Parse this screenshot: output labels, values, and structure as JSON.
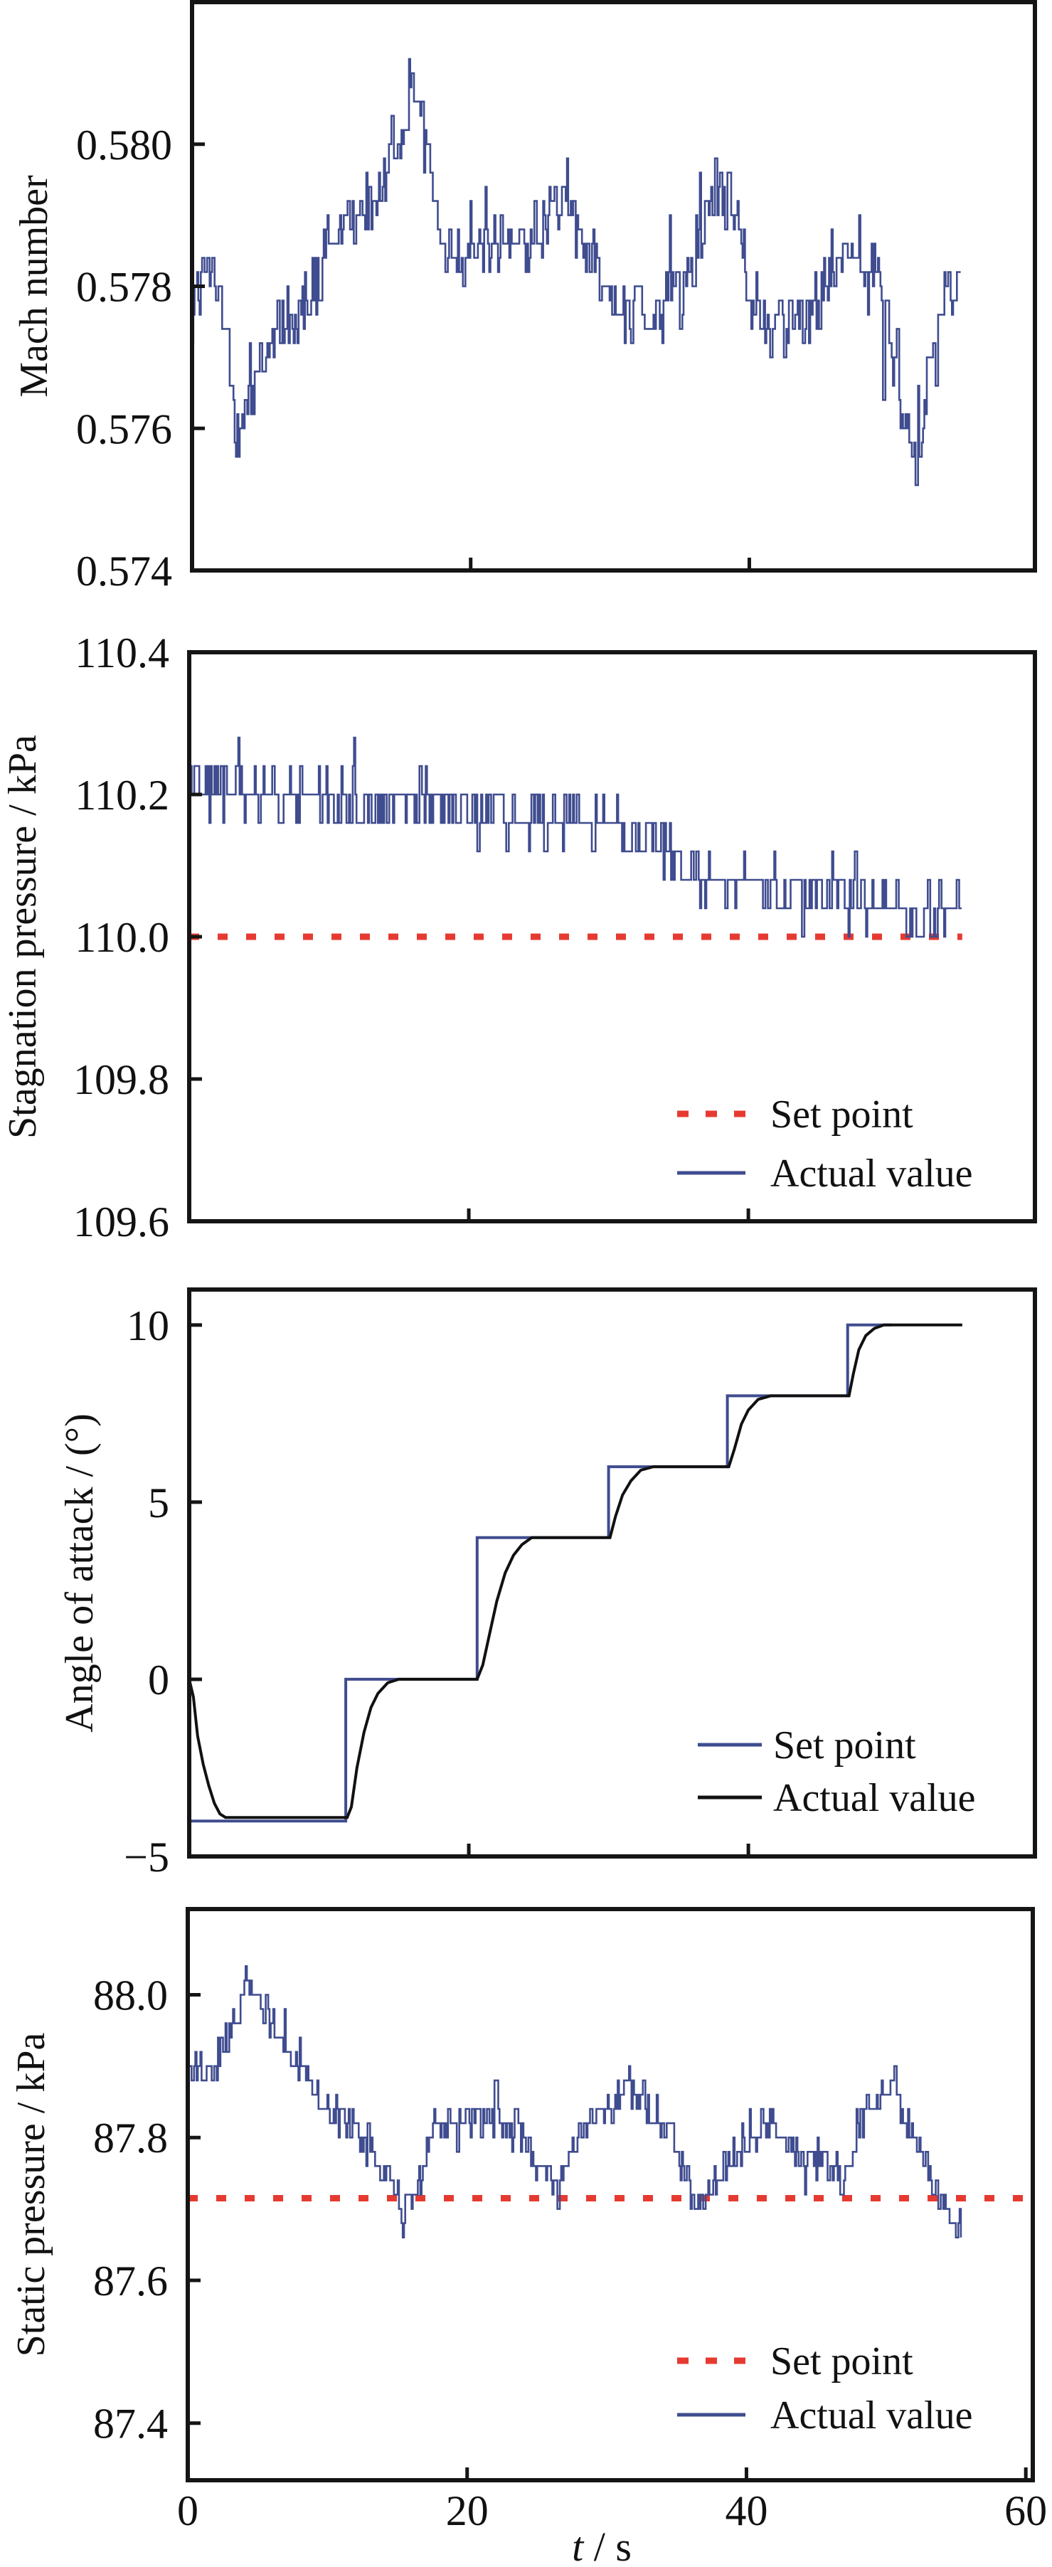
{
  "colors": {
    "actual_blue": "#3f4c8f",
    "setpoint_red": "#e63a31",
    "actual_black": "#111111",
    "axis": "#151515"
  },
  "chart_data": [
    {
      "type": "line",
      "id": "mach",
      "ylabel": "Mach number",
      "xlabel": "",
      "xlim": [
        0,
        60
      ],
      "ylim": [
        0.574,
        0.582
      ],
      "yticks": [
        "0.574",
        "0.576",
        "0.578",
        "0.580"
      ],
      "ytick_values": [
        0.574,
        0.576,
        0.578,
        0.58
      ],
      "xtick_values": [
        20,
        40
      ],
      "legend": null,
      "series": [
        {
          "name": "Actual value",
          "style": "solid",
          "color": "#3f4c8f",
          "t_end": 55.2,
          "sample_period": 0.09,
          "quantum": 0.0002,
          "noise": 0.00085,
          "trend": [
            [
              0,
              0.5778
            ],
            [
              1,
              0.5782
            ],
            [
              2,
              0.5779
            ],
            [
              3,
              0.5761
            ],
            [
              4,
              0.5763
            ],
            [
              5,
              0.577
            ],
            [
              7,
              0.5775
            ],
            [
              9,
              0.5781
            ],
            [
              11,
              0.5789
            ],
            [
              13,
              0.5791
            ],
            [
              14,
              0.5796
            ],
            [
              15,
              0.5804
            ],
            [
              16,
              0.5809
            ],
            [
              17,
              0.58
            ],
            [
              18,
              0.5785
            ],
            [
              20,
              0.5786
            ],
            [
              22,
              0.5785
            ],
            [
              25,
              0.5788
            ],
            [
              26,
              0.5793
            ],
            [
              27,
              0.5791
            ],
            [
              28,
              0.5787
            ],
            [
              30,
              0.5778
            ],
            [
              32,
              0.5776
            ],
            [
              34,
              0.5777
            ],
            [
              36,
              0.5784
            ],
            [
              37,
              0.579
            ],
            [
              38,
              0.5795
            ],
            [
              39,
              0.5789
            ],
            [
              40,
              0.5778
            ],
            [
              42,
              0.5774
            ],
            [
              44,
              0.5775
            ],
            [
              45,
              0.578
            ],
            [
              47,
              0.5787
            ],
            [
              49,
              0.5783
            ],
            [
              50,
              0.5771
            ],
            [
              51,
              0.5762
            ],
            [
              52,
              0.5757
            ],
            [
              53,
              0.5767
            ],
            [
              54,
              0.5779
            ],
            [
              55.2,
              0.5783
            ]
          ]
        }
      ]
    },
    {
      "type": "line",
      "id": "stagnation",
      "ylabel": "Stagnation pressure / kPa",
      "xlabel": "",
      "xlim": [
        0,
        60
      ],
      "ylim": [
        109.6,
        110.4
      ],
      "yticks": [
        "109.6",
        "109.8",
        "110.0",
        "110.2",
        "110.4"
      ],
      "ytick_values": [
        109.6,
        109.8,
        110.0,
        110.2,
        110.4
      ],
      "xtick_values": [
        20,
        40
      ],
      "legend": {
        "placement": "lower-right",
        "entries": [
          "Set point",
          "Actual value"
        ]
      },
      "series": [
        {
          "name": "Set point",
          "style": "dashed",
          "color": "#e63a31",
          "x": [
            0,
            55.3
          ],
          "y": [
            110.0,
            110.0
          ]
        },
        {
          "name": "Actual value",
          "style": "solid",
          "color": "#3f4c8f",
          "t_end": 55.3,
          "sample_period": 0.09,
          "quantum": 0.04,
          "noise": 0.06,
          "trend": [
            [
              0,
              110.22
            ],
            [
              3,
              110.2
            ],
            [
              8,
              110.19
            ],
            [
              14,
              110.19
            ],
            [
              18,
              110.19
            ],
            [
              22,
              110.17
            ],
            [
              26,
              110.17
            ],
            [
              30,
              110.16
            ],
            [
              33,
              110.13
            ],
            [
              35,
              110.1
            ],
            [
              38,
              110.08
            ],
            [
              41,
              110.07
            ],
            [
              44,
              110.06
            ],
            [
              48,
              110.06
            ],
            [
              50,
              110.04
            ],
            [
              52,
              110.02
            ],
            [
              55.3,
              110.04
            ]
          ]
        }
      ]
    },
    {
      "type": "line",
      "id": "angle",
      "ylabel": "Angle of attack / (°)",
      "xlabel": "",
      "xlim": [
        0,
        60
      ],
      "ylim": [
        -5,
        11
      ],
      "yticks": [
        "−5",
        "0",
        "5",
        "10"
      ],
      "ytick_values": [
        -5,
        0,
        5,
        10
      ],
      "xtick_values": [
        20,
        40
      ],
      "legend": {
        "placement": "lower-right",
        "entries": [
          "Set point",
          "Actual value"
        ]
      },
      "series": [
        {
          "name": "Set point",
          "style": "step",
          "color": "#3f4c8f",
          "x": [
            0,
            0,
            11.2,
            11.2,
            20.6,
            20.6,
            30.0,
            30.0,
            38.5,
            38.5,
            47.1,
            47.1,
            50.3
          ],
          "y": [
            0,
            -4,
            -4,
            0,
            0,
            4,
            4,
            6,
            6,
            8,
            8,
            10,
            10
          ]
        },
        {
          "name": "Actual value",
          "style": "solid",
          "color": "#111111",
          "x": [
            0,
            0.3,
            0.6,
            1.0,
            1.4,
            1.8,
            2.2,
            2.6,
            11.3,
            11.6,
            12.0,
            12.5,
            13.0,
            13.5,
            14.2,
            15.0,
            15.8,
            20.6,
            21.0,
            21.5,
            22.0,
            22.6,
            23.2,
            23.8,
            24.5,
            25.5,
            30.1,
            30.5,
            31.0,
            31.6,
            32.3,
            33.2,
            38.6,
            39.0,
            39.5,
            40.0,
            40.7,
            41.6,
            47.2,
            47.5,
            47.9,
            48.4,
            49.0,
            49.7,
            50.6,
            55.3
          ],
          "y": [
            0,
            -0.5,
            -1.6,
            -2.4,
            -3.0,
            -3.5,
            -3.8,
            -3.9,
            -3.9,
            -3.6,
            -2.5,
            -1.5,
            -0.8,
            -0.4,
            -0.1,
            0,
            0,
            0,
            0.4,
            1.3,
            2.2,
            3.0,
            3.5,
            3.8,
            4.0,
            4.0,
            4.0,
            4.6,
            5.2,
            5.6,
            5.9,
            6.0,
            6.0,
            6.5,
            7.2,
            7.6,
            7.9,
            8.0,
            8.0,
            8.6,
            9.3,
            9.7,
            9.9,
            10.0,
            10.0,
            10.0
          ]
        }
      ]
    },
    {
      "type": "line",
      "id": "static",
      "ylabel": "Static pressure / kPa",
      "xlabel": "t / s",
      "xlim": [
        0,
        60
      ],
      "ylim": [
        87.32,
        88.12
      ],
      "yticks": [
        "87.4",
        "87.6",
        "87.8",
        "88.0"
      ],
      "ytick_values": [
        87.4,
        87.6,
        87.8,
        88.0
      ],
      "xticks": [
        "0",
        "20",
        "40",
        "60"
      ],
      "xtick_values": [
        0,
        20,
        40,
        60
      ],
      "legend": {
        "placement": "lower-right",
        "entries": [
          "Set point",
          "Actual value"
        ]
      },
      "series": [
        {
          "name": "Set point",
          "style": "dashed",
          "color": "#e63a31",
          "x": [
            0,
            60
          ],
          "y": [
            87.715,
            87.715
          ]
        },
        {
          "name": "Actual value",
          "style": "solid",
          "color": "#3f4c8f",
          "t_end": 55.4,
          "sample_period": 0.09,
          "quantum": 0.02,
          "noise": 0.045,
          "trend": [
            [
              0,
              87.9
            ],
            [
              2,
              87.9
            ],
            [
              3,
              87.95
            ],
            [
              4,
              88.01
            ],
            [
              6,
              87.97
            ],
            [
              8,
              87.9
            ],
            [
              10,
              87.84
            ],
            [
              12,
              87.81
            ],
            [
              14,
              87.75
            ],
            [
              15.5,
              87.7
            ],
            [
              16.5,
              87.72
            ],
            [
              17.5,
              87.82
            ],
            [
              22,
              87.83
            ],
            [
              24,
              87.8
            ],
            [
              25.5,
              87.75
            ],
            [
              26.5,
              87.73
            ],
            [
              28,
              87.8
            ],
            [
              30,
              87.84
            ],
            [
              31.5,
              87.87
            ],
            [
              33,
              87.85
            ],
            [
              34.5,
              87.8
            ],
            [
              35.5,
              87.74
            ],
            [
              36.8,
              87.7
            ],
            [
              38,
              87.75
            ],
            [
              40,
              87.8
            ],
            [
              42,
              87.82
            ],
            [
              43.5,
              87.78
            ],
            [
              45.5,
              87.76
            ],
            [
              47,
              87.74
            ],
            [
              48.5,
              87.84
            ],
            [
              50.5,
              87.87
            ],
            [
              52,
              87.8
            ],
            [
              53.5,
              87.72
            ],
            [
              55.4,
              87.68
            ]
          ]
        }
      ]
    }
  ]
}
